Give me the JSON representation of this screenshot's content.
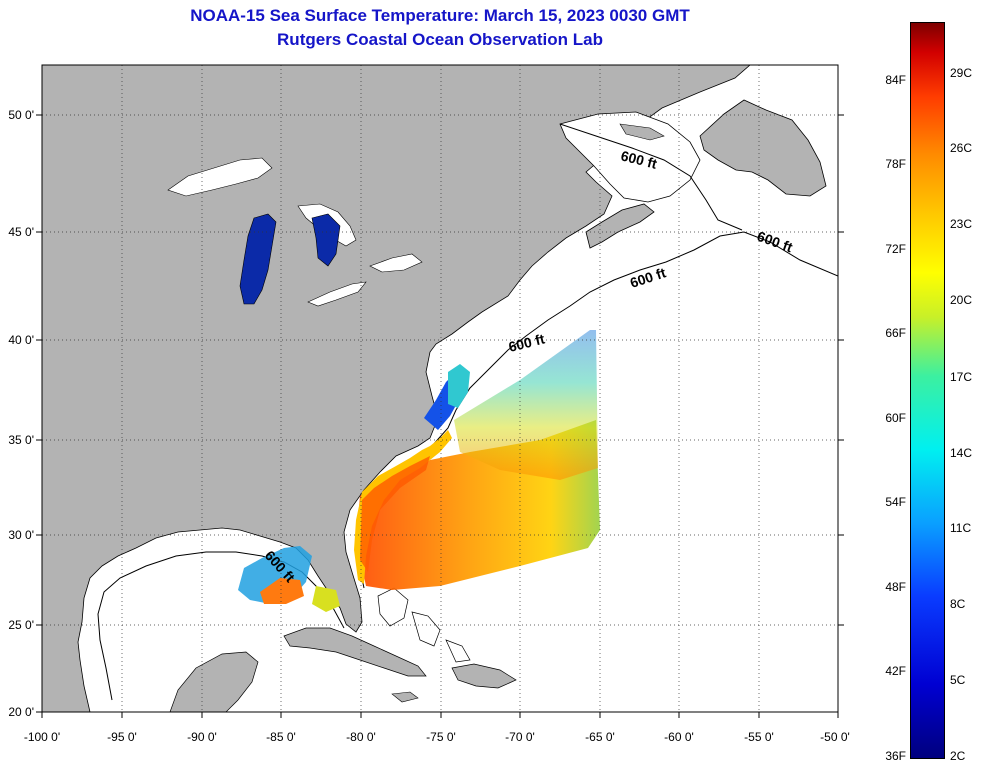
{
  "title": {
    "line1": "NOAA-15 Sea Surface Temperature:  March 15, 2023 0030 GMT",
    "line2": "Rutgers Coastal Ocean Observation Lab"
  },
  "map": {
    "lon_range": [
      -100,
      -50
    ],
    "lat_range": [
      20,
      52
    ],
    "lat_labels": [
      "50 0'",
      "45 0'",
      "40 0'",
      "35 0'",
      "30 0'",
      "25 0'",
      "20 0'"
    ],
    "lon_labels": [
      "-100 0'",
      "-95 0'",
      "-90 0'",
      "-85 0'",
      "-80 0'",
      "-75 0'",
      "-70 0'",
      "-65 0'",
      "-60 0'",
      "-55 0'",
      "-50 0'"
    ],
    "contour_labels": [
      "600 ft",
      "600 ft",
      "600 ft",
      "600 ft",
      "600 ft"
    ],
    "colors": {
      "land": "#b3b3b3",
      "ocean": "#ffffff",
      "lakes": "#0b2aa8"
    }
  },
  "colorbar": {
    "fahrenheit": [
      "84F",
      "78F",
      "72F",
      "66F",
      "60F",
      "54F",
      "48F",
      "42F",
      "36F"
    ],
    "celsius": [
      "29C",
      "26C",
      "23C",
      "20C",
      "17C",
      "14C",
      "11C",
      "8C",
      "5C",
      "2C"
    ]
  }
}
